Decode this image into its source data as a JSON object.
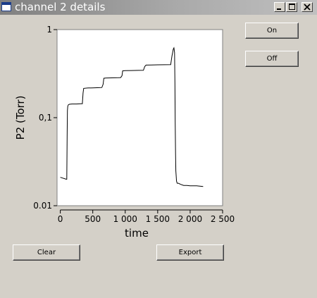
{
  "window": {
    "title": "channel 2 details"
  },
  "buttons": {
    "on": "On",
    "off": "Off",
    "clear": "Clear",
    "export": "Export"
  },
  "colors": {
    "titlebar_start": "#808080",
    "titlebar_end": "#c0c0c0",
    "window_bg": "#d4d0c8",
    "plot_bg": "#ffffff",
    "trace": "#000000"
  },
  "chart_data": {
    "type": "line",
    "xlabel": "time",
    "ylabel": "P2 (Torr)",
    "yscale": "log",
    "xlim": [
      -50,
      2500
    ],
    "ylim": [
      0.01,
      1
    ],
    "xticks": [
      0,
      500,
      1000,
      1500,
      2000,
      2500
    ],
    "xtick_labels": [
      "0",
      "500",
      "1 000",
      "1 500",
      "2 000",
      "2 500"
    ],
    "yticks": [
      0.01,
      0.1,
      1
    ],
    "ytick_labels": [
      "0.01",
      "0,1",
      "1"
    ],
    "grid": false,
    "series": [
      {
        "x": [
          0,
          90,
          100,
          105,
          110,
          115,
          125,
          140,
          180,
          250,
          320,
          340,
          350,
          360,
          420,
          500,
          600,
          640,
          660,
          670,
          700,
          800,
          900,
          930,
          950,
          960,
          1000,
          1100,
          1200,
          1280,
          1300,
          1320,
          1400,
          1500,
          1600,
          1700,
          1720,
          1740,
          1750,
          1760,
          1765,
          1770,
          1775,
          1780,
          1790,
          1800,
          1820,
          1850,
          1900,
          1950,
          2000,
          2100,
          2200
        ],
        "y": [
          0.021,
          0.02,
          0.02,
          0.06,
          0.12,
          0.135,
          0.14,
          0.142,
          0.143,
          0.143,
          0.144,
          0.144,
          0.19,
          0.215,
          0.217,
          0.218,
          0.219,
          0.22,
          0.24,
          0.28,
          0.282,
          0.283,
          0.284,
          0.285,
          0.3,
          0.34,
          0.342,
          0.343,
          0.344,
          0.345,
          0.38,
          0.395,
          0.397,
          0.398,
          0.399,
          0.4,
          0.5,
          0.6,
          0.62,
          0.55,
          0.25,
          0.09,
          0.04,
          0.025,
          0.019,
          0.018,
          0.018,
          0.0175,
          0.017,
          0.017,
          0.0168,
          0.0168,
          0.0165
        ]
      }
    ]
  }
}
